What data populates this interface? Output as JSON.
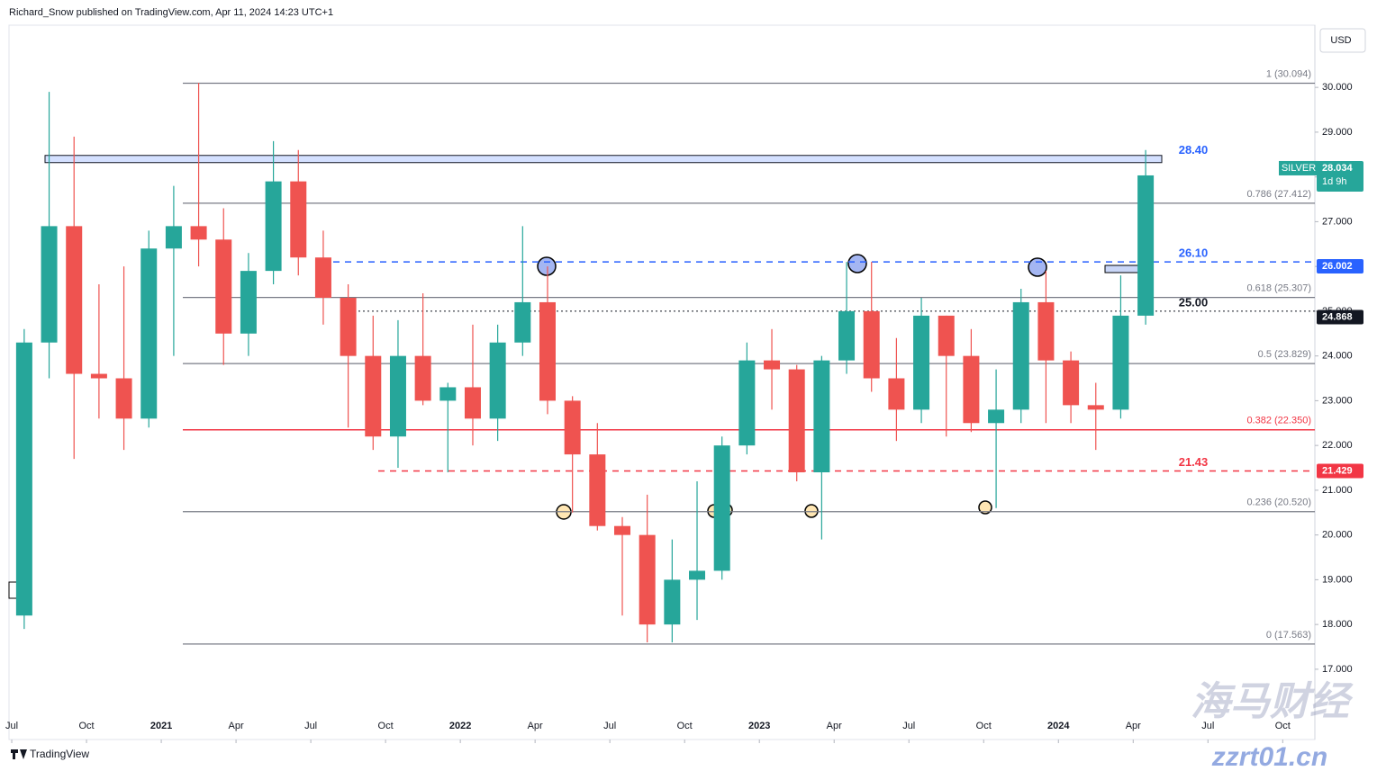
{
  "header": "Richard_Snow published on TradingView.com, Apr 11, 2024 14:23 UTC+1",
  "footer": "TradingView",
  "watermark": [
    "海马财经",
    "zzrt01.cn"
  ],
  "chart_data": {
    "type": "candlestick",
    "currency": "USD",
    "series": [
      {
        "name": "SILVER",
        "up_color": "#26a69a",
        "down_color": "#ef5350",
        "values": [
          [
            18.2,
            24.6,
            17.9,
            24.3
          ],
          [
            24.3,
            29.9,
            23.5,
            26.9
          ],
          [
            26.9,
            28.9,
            21.7,
            23.6
          ],
          [
            23.6,
            25.6,
            22.6,
            23.5
          ],
          [
            23.5,
            26.0,
            21.9,
            22.6
          ],
          [
            22.6,
            26.8,
            22.4,
            26.4
          ],
          [
            26.4,
            27.8,
            24.0,
            26.9
          ],
          [
            26.9,
            30.1,
            26.0,
            26.6
          ],
          [
            26.6,
            27.3,
            23.8,
            24.5
          ],
          [
            24.5,
            26.3,
            24.0,
            25.9
          ],
          [
            25.9,
            28.8,
            25.6,
            27.9
          ],
          [
            27.9,
            28.6,
            25.8,
            26.2
          ],
          [
            26.2,
            26.8,
            24.7,
            25.3
          ],
          [
            25.3,
            25.6,
            22.4,
            24.0
          ],
          [
            24.0,
            24.9,
            21.9,
            22.2
          ],
          [
            22.2,
            24.8,
            21.5,
            24.0
          ],
          [
            24.0,
            25.4,
            22.9,
            23.0
          ],
          [
            23.0,
            23.4,
            21.4,
            23.3
          ],
          [
            23.3,
            24.7,
            22.0,
            22.6
          ],
          [
            22.6,
            24.7,
            22.1,
            24.3
          ],
          [
            24.3,
            26.9,
            24.0,
            25.2
          ],
          [
            25.2,
            26.0,
            22.7,
            23.0
          ],
          [
            23.0,
            23.1,
            20.5,
            21.8
          ],
          [
            21.8,
            22.5,
            20.1,
            20.2
          ],
          [
            20.2,
            20.4,
            18.2,
            20.0
          ],
          [
            20.0,
            20.9,
            17.6,
            18.0
          ],
          [
            18.0,
            19.9,
            17.6,
            19.0
          ],
          [
            19.0,
            21.2,
            18.1,
            19.2
          ],
          [
            19.2,
            22.2,
            19.0,
            22.0
          ],
          [
            22.0,
            24.3,
            21.8,
            23.9
          ],
          [
            23.9,
            24.6,
            22.8,
            23.7
          ],
          [
            23.7,
            23.8,
            21.2,
            21.4
          ],
          [
            21.4,
            24.0,
            19.9,
            23.9
          ],
          [
            23.9,
            26.1,
            23.6,
            25.0
          ],
          [
            25.0,
            26.1,
            23.2,
            23.5
          ],
          [
            23.5,
            24.4,
            22.1,
            22.8
          ],
          [
            22.8,
            25.3,
            22.5,
            24.9
          ],
          [
            24.9,
            24.9,
            22.2,
            24.0
          ],
          [
            24.0,
            24.6,
            22.3,
            22.5
          ],
          [
            22.5,
            23.7,
            20.6,
            22.8
          ],
          [
            22.8,
            25.5,
            22.5,
            25.2
          ],
          [
            25.2,
            25.9,
            22.5,
            23.9
          ],
          [
            23.9,
            24.1,
            22.5,
            22.9
          ],
          [
            22.9,
            23.4,
            21.9,
            22.8
          ],
          [
            22.8,
            25.8,
            22.6,
            24.9
          ],
          [
            24.9,
            28.6,
            24.7,
            28.034
          ]
        ]
      }
    ],
    "last_price": 28.034,
    "countdown": "1d 9h",
    "xlim": [
      -0.61,
      51.79
    ],
    "xticks": [
      {
        "value": -0.5,
        "label": "Jul"
      },
      {
        "value": 2.5,
        "label": "Oct"
      },
      {
        "value": 5.5,
        "label": "2021"
      },
      {
        "value": 8.5,
        "label": "Apr"
      },
      {
        "value": 11.5,
        "label": "Jul"
      },
      {
        "value": 14.5,
        "label": "Oct"
      },
      {
        "value": 17.5,
        "label": "2022"
      },
      {
        "value": 20.5,
        "label": "Apr"
      },
      {
        "value": 23.5,
        "label": "Jul"
      },
      {
        "value": 26.5,
        "label": "Oct"
      },
      {
        "value": 29.5,
        "label": "2023"
      },
      {
        "value": 32.5,
        "label": "Apr"
      },
      {
        "value": 35.5,
        "label": "Jul"
      },
      {
        "value": 38.5,
        "label": "Oct"
      },
      {
        "value": 41.5,
        "label": "2024"
      },
      {
        "value": 44.5,
        "label": "Apr"
      },
      {
        "value": 47.5,
        "label": "Jul"
      },
      {
        "value": 50.5,
        "label": "Oct"
      }
    ],
    "ylim": [
      15.43,
      31.39
    ],
    "yticks": [
      {
        "value": 17,
        "label": "17.000"
      },
      {
        "value": 18,
        "label": "18.000"
      },
      {
        "value": 19,
        "label": "19.000"
      },
      {
        "value": 20,
        "label": "20.000"
      },
      {
        "value": 21,
        "label": "21.000"
      },
      {
        "value": 22,
        "label": "22.000"
      },
      {
        "value": 23,
        "label": "23.000"
      },
      {
        "value": 24,
        "label": "24.000"
      },
      {
        "value": 25,
        "label": "25.000"
      },
      {
        "value": 26,
        "label": "26.000"
      },
      {
        "value": 27,
        "label": "27.000"
      },
      {
        "value": 28,
        "label": "28.000"
      },
      {
        "value": 29,
        "label": "29.000"
      },
      {
        "value": 30,
        "label": "30.000"
      }
    ],
    "fib_levels": [
      {
        "value": 30.094,
        "label": "1 (30.094)",
        "color": "#787b86"
      },
      {
        "value": 27.412,
        "label": "0.786 (27.412)",
        "color": "#787b86"
      },
      {
        "value": 25.307,
        "label": "0.618 (25.307)",
        "color": "#787b86"
      },
      {
        "value": 23.829,
        "label": "0.5 (23.829)",
        "color": "#787b86"
      },
      {
        "value": 22.35,
        "label": "0.382 (22.350)",
        "color": "#f23645"
      },
      {
        "value": 20.52,
        "label": "0.236 (20.520)",
        "color": "#787b86"
      },
      {
        "value": 17.563,
        "label": "0 (17.563)",
        "color": "#787b86"
      }
    ],
    "levels": [
      {
        "value": 28.4,
        "label": "28.40",
        "style": "zone",
        "color": "#2962ff"
      },
      {
        "value": 26.1,
        "label": "26.10",
        "style": "dashed",
        "color": "#2962ff"
      },
      {
        "value": 25,
        "label": "25.00",
        "style": "dotted",
        "color": "#131722"
      },
      {
        "value": 21.43,
        "label": "21.43",
        "style": "dashed",
        "color": "#f23645"
      }
    ],
    "price_tags": [
      {
        "value": 26.002,
        "color": "#2962ff"
      },
      {
        "value": 24.868,
        "color": "#131722"
      },
      {
        "value": 21.429,
        "color": "#f23645"
      }
    ]
  }
}
